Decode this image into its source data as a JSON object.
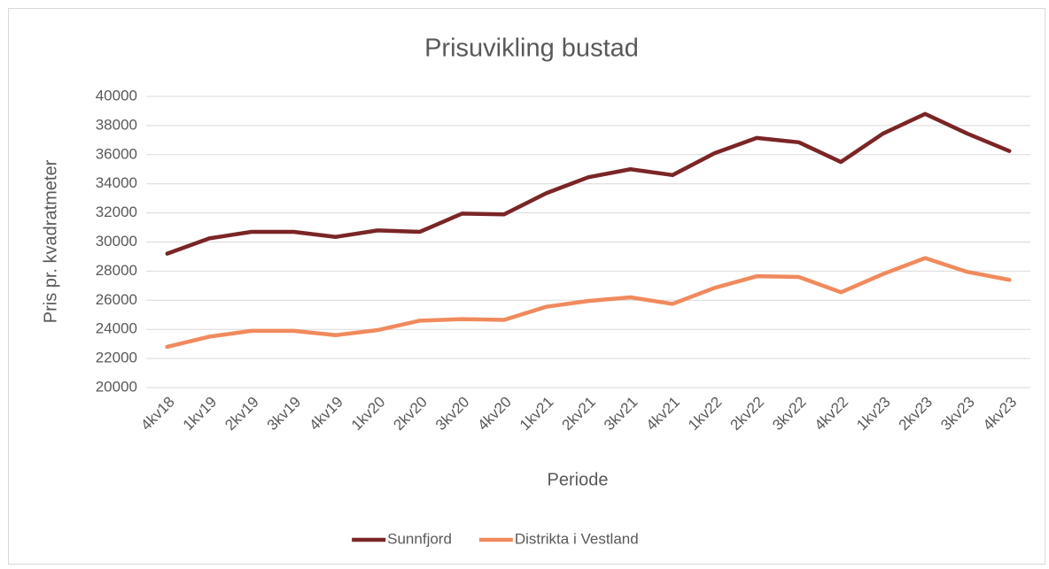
{
  "chart_data": {
    "type": "line",
    "title": "Prisuvikling bustad",
    "x_label": "Periode",
    "y_label": "Pris pr. kvadratmeter",
    "categories": [
      "4kv18",
      "1kv19",
      "2kv19",
      "3kv19",
      "4kv19",
      "1kv20",
      "2kv20",
      "3kv20",
      "4kv20",
      "1kv21",
      "2kv21",
      "3kv21",
      "4kv21",
      "1kv22",
      "2kv22",
      "3kv22",
      "4kv22",
      "1kv23",
      "2kv23",
      "3kv23",
      "4kv23"
    ],
    "series": [
      {
        "name": "Sunnfjord",
        "color": "#7b2526",
        "values": [
          29200,
          30250,
          30700,
          30700,
          30350,
          30800,
          30700,
          31950,
          31900,
          33350,
          34450,
          35000,
          34600,
          36100,
          37150,
          36850,
          35500,
          37450,
          38800,
          37450,
          36250
        ]
      },
      {
        "name": "Distrikta i Vestland",
        "color": "#f08a5d",
        "values": [
          22800,
          23500,
          23900,
          23900,
          23600,
          23950,
          24600,
          24700,
          24650,
          25550,
          25950,
          26200,
          25750,
          26850,
          27650,
          27600,
          26550,
          27800,
          28900,
          27950,
          27400
        ]
      }
    ],
    "ylim": [
      20000,
      40000
    ],
    "yticks": [
      20000,
      22000,
      24000,
      26000,
      28000,
      30000,
      32000,
      34000,
      36000,
      38000,
      40000
    ],
    "grid": true,
    "legend": "bottom"
  }
}
